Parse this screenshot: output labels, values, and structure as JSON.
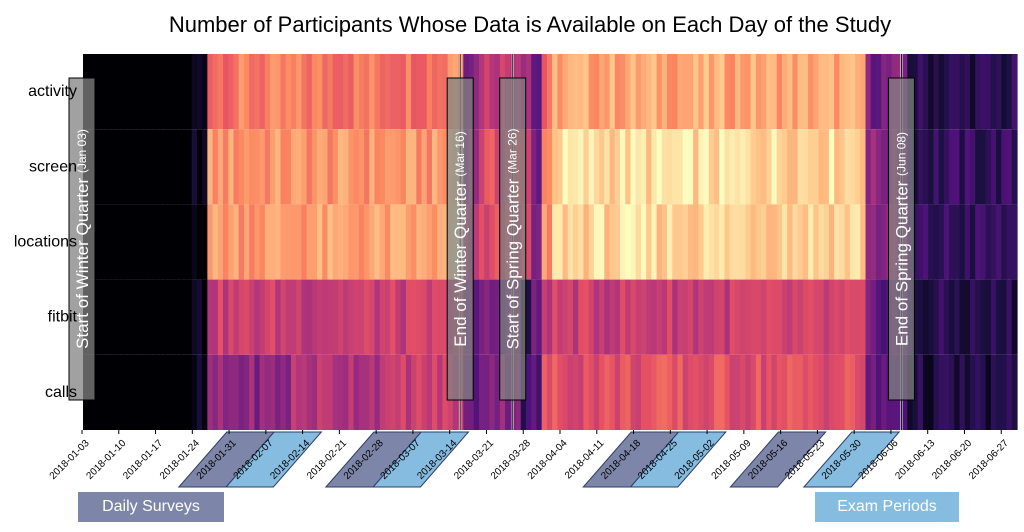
{
  "chart_data": {
    "type": "heatmap",
    "title": "Number of Participants Whose Data is Available on Each Day of the Study",
    "rows": [
      "activity",
      "screen",
      "locations",
      "fitbit",
      "calls"
    ],
    "x_start": "2018-01-03",
    "x_end": "2018-06-30",
    "x_tick_labels": [
      "2018-01-03",
      "2018-01-10",
      "2018-01-17",
      "2018-01-24",
      "2018-01-31",
      "2018-02-07",
      "2018-02-14",
      "2018-02-21",
      "2018-02-28",
      "2018-03-07",
      "2018-03-14",
      "2018-03-21",
      "2018-03-28",
      "2018-04-04",
      "2018-04-11",
      "2018-04-18",
      "2018-04-25",
      "2018-05-02",
      "2018-05-09",
      "2018-05-16",
      "2018-05-23",
      "2018-05-30",
      "2018-06-06",
      "2018-06-13",
      "2018-06-20",
      "2018-06-27"
    ],
    "colormap": "magma",
    "events": [
      {
        "label": "Start of Winter Quarter",
        "date_label": "(Jan 03)",
        "date": "2018-01-03"
      },
      {
        "label": "End of Winter Quarter",
        "date_label": "(Mar 16)",
        "date": "2018-03-16"
      },
      {
        "label": "Start of Spring Quarter",
        "date_label": "(Mar 26)",
        "date": "2018-03-26"
      },
      {
        "label": "End of Spring Quarter",
        "date_label": "(Jun 08)",
        "date": "2018-06-08"
      }
    ],
    "highlight_periods": [
      {
        "kind": "Daily Surveys",
        "start": "2018-01-26",
        "end": "2018-02-04"
      },
      {
        "kind": "Exam Periods",
        "start": "2018-02-04",
        "end": "2018-02-13"
      },
      {
        "kind": "Daily Surveys",
        "start": "2018-02-23",
        "end": "2018-03-04"
      },
      {
        "kind": "Exam Periods",
        "start": "2018-03-04",
        "end": "2018-03-13"
      },
      {
        "kind": "Daily Surveys",
        "start": "2018-04-13",
        "end": "2018-04-22"
      },
      {
        "kind": "Exam Periods",
        "start": "2018-04-22",
        "end": "2018-05-01"
      },
      {
        "kind": "Daily Surveys",
        "start": "2018-05-11",
        "end": "2018-05-20"
      },
      {
        "kind": "Exam Periods",
        "start": "2018-05-25",
        "end": "2018-06-03"
      }
    ],
    "availability_profile": [
      {
        "row": "activity",
        "segments": [
          [
            0,
            0.0
          ],
          [
            21,
            0.05
          ],
          [
            24,
            0.72
          ],
          [
            70,
            0.82
          ],
          [
            73,
            0.4
          ],
          [
            76,
            0.55
          ],
          [
            84,
            0.5
          ],
          [
            86,
            0.3
          ],
          [
            88,
            0.65
          ],
          [
            90,
            0.82
          ],
          [
            150,
            0.35
          ],
          [
            158,
            0.15
          ]
        ]
      },
      {
        "row": "screen",
        "segments": [
          [
            0,
            0.0
          ],
          [
            21,
            0.05
          ],
          [
            24,
            0.78
          ],
          [
            70,
            0.92
          ],
          [
            73,
            0.45
          ],
          [
            76,
            0.6
          ],
          [
            84,
            0.55
          ],
          [
            86,
            0.35
          ],
          [
            88,
            0.75
          ],
          [
            90,
            0.93
          ],
          [
            150,
            0.4
          ],
          [
            158,
            0.18
          ]
        ]
      },
      {
        "row": "locations",
        "segments": [
          [
            0,
            0.0
          ],
          [
            21,
            0.05
          ],
          [
            24,
            0.8
          ],
          [
            70,
            0.93
          ],
          [
            73,
            0.45
          ],
          [
            76,
            0.6
          ],
          [
            84,
            0.55
          ],
          [
            86,
            0.35
          ],
          [
            88,
            0.75
          ],
          [
            90,
            0.92
          ],
          [
            150,
            0.4
          ],
          [
            158,
            0.18
          ]
        ]
      },
      {
        "row": "fitbit",
        "segments": [
          [
            0,
            0.0
          ],
          [
            21,
            0.05
          ],
          [
            24,
            0.55
          ],
          [
            70,
            0.56
          ],
          [
            73,
            0.3
          ],
          [
            76,
            0.35
          ],
          [
            84,
            0.12
          ],
          [
            86,
            0.3
          ],
          [
            88,
            0.55
          ],
          [
            150,
            0.3
          ],
          [
            158,
            0.14
          ]
        ]
      },
      {
        "row": "calls",
        "segments": [
          [
            0,
            0.0
          ],
          [
            21,
            0.04
          ],
          [
            24,
            0.4
          ],
          [
            40,
            0.5
          ],
          [
            60,
            0.55
          ],
          [
            73,
            0.3
          ],
          [
            76,
            0.4
          ],
          [
            84,
            0.2
          ],
          [
            86,
            0.25
          ],
          [
            88,
            0.62
          ],
          [
            150,
            0.28
          ],
          [
            158,
            0.12
          ]
        ]
      }
    ]
  },
  "legend": {
    "daily_surveys_label": "Daily Surveys",
    "exam_periods_label": "Exam Periods",
    "daily_surveys_color": "#7d86a8",
    "exam_periods_color": "#86bce0"
  }
}
